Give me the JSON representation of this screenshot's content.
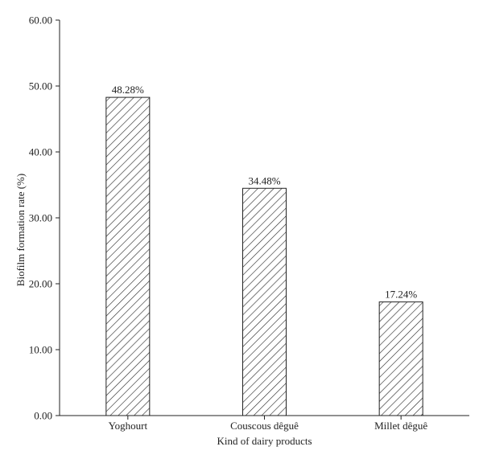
{
  "chart_data": {
    "type": "bar",
    "categories": [
      "Yoghourt",
      "Couscous dêguê",
      "Millet dêguê"
    ],
    "values": [
      48.28,
      34.48,
      17.24
    ],
    "data_labels": [
      "48.28%",
      "34.48%",
      "17.24%"
    ],
    "title": "",
    "xlabel": "Kind of dairy products",
    "ylabel": "Biofilm formation rate (%)",
    "ylim": [
      0,
      60
    ],
    "yticks": [
      0,
      10,
      20,
      30,
      40,
      50,
      60
    ],
    "ytick_labels": [
      "0.00",
      "10.00",
      "20.00",
      "30.00",
      "40.00",
      "50.00",
      "60.00"
    ],
    "grid": false,
    "legend": "none",
    "bar_fill": "diagonal-hatch",
    "colors": {
      "stroke": "#222222",
      "fill": "#ffffff"
    }
  }
}
